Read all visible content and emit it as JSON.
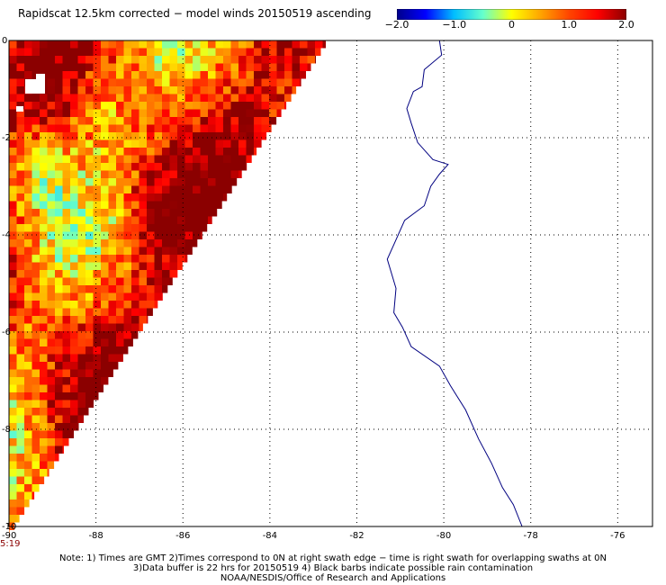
{
  "title": "Rapidscat 12.5km corrected − model winds 20150519 ascending",
  "colorbar": {
    "ticks": [
      "−2.0",
      "−1.0",
      "0",
      "1.0",
      "2.0"
    ],
    "tick_values": [
      -2.0,
      -1.0,
      0,
      1.0,
      2.0
    ],
    "range": [
      -2.0,
      2.0
    ],
    "colors": [
      "#00008b",
      "#0000ff",
      "#00bfff",
      "#66ffcc",
      "#ffff00",
      "#ffa500",
      "#ff4500",
      "#ff0000",
      "#8b0000"
    ]
  },
  "map": {
    "lon_ticks": [
      "-90",
      "-88",
      "-86",
      "-84",
      "-82",
      "-80",
      "-78",
      "-76"
    ],
    "lon_values": [
      -90,
      -88,
      -86,
      -84,
      -82,
      -80,
      -78,
      -76
    ],
    "lat_ticks": [
      "0",
      "-2",
      "-4",
      "-6",
      "-8",
      "-10"
    ],
    "lat_values": [
      0,
      -2,
      -4,
      -6,
      -8,
      -10
    ],
    "lon_range": [
      -90,
      -75.2
    ],
    "lat_range": [
      -10,
      0
    ],
    "grid": "dotted",
    "coast_color": "#000080"
  },
  "timestamp": "5:19",
  "notes": [
    "Note: 1) Times are GMT 2)Times correspond to 0N at right swath edge − time is right swath for overlapping swaths at 0N",
    "3)Data buffer is 22 hrs for 20150519 4) Black barbs indicate possible rain contamination",
    "NOAA/NESDIS/Office of Research and Applications"
  ]
}
